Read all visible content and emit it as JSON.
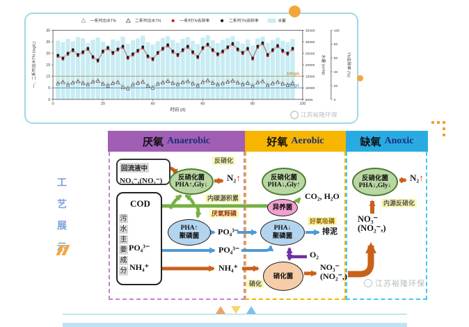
{
  "colors": {
    "accent_orange": "#f4a63a",
    "card_border": "#9fd8e6",
    "arrow_green": "#76b043",
    "arrow_blue": "#4f9ad6",
    "arrow_orange": "#c9611a",
    "arrow_purple": "#7030a0"
  },
  "side_label": {
    "chars": [
      "工",
      "艺",
      "展",
      "示"
    ]
  },
  "chart_data": {
    "type": "scatter",
    "title": "",
    "xlabel": "时间 (d)",
    "ylabel_left": "一、二系列出水TN (mg/L)",
    "ylabel_right1": "水量 (m³/d)",
    "ylabel_right2": "TN去除率 (%)",
    "xlim": [
      0,
      100
    ],
    "ylim_left": [
      0,
      30
    ],
    "ylim_right1": [
      5000,
      35000
    ],
    "ylim_right2": [
      0,
      100
    ],
    "x_ticks": [
      0,
      20,
      40,
      60,
      80,
      100
    ],
    "y_ticks_left": [
      0,
      5,
      10,
      15,
      20,
      25,
      30
    ],
    "y_ticks_right1": [
      5000,
      10000,
      15000,
      20000,
      25000,
      30000,
      35000
    ],
    "y_ticks_right2": [
      0,
      20,
      40,
      60,
      80,
      100
    ],
    "reference_lines": [
      {
        "value": 10,
        "label": "10mg/L",
        "color": "#b06a00"
      },
      {
        "value": 5,
        "label": "5mg/L",
        "color": "#2e75b6"
      }
    ],
    "legend_position": "top",
    "grid": false,
    "watermark": "江苏裕隆环保",
    "x": [
      2,
      4,
      6,
      8,
      10,
      12,
      14,
      16,
      18,
      20,
      22,
      24,
      26,
      28,
      30,
      32,
      34,
      36,
      38,
      40,
      42,
      44,
      46,
      48,
      50,
      52,
      54,
      56,
      58,
      60,
      62,
      64,
      66,
      68,
      70,
      72,
      74,
      76,
      78,
      80,
      82,
      84,
      86,
      88,
      90,
      92,
      94,
      96
    ],
    "series": [
      {
        "name": "一系列出水TN",
        "marker": "triangle-open",
        "color": "#9e9e9e",
        "axis": "left",
        "type": "scatter-line",
        "values": [
          7.2,
          7.8,
          6.9,
          7.5,
          8.1,
          7.4,
          6.8,
          7.9,
          8.3,
          7.1,
          6.5,
          7.3,
          7.8,
          5.9,
          5.2,
          6.8,
          7.4,
          7.9,
          6.2,
          5.5,
          7.1,
          7.6,
          8.2,
          7.4,
          6.9,
          7.7,
          8.1,
          7.2,
          6.4,
          7.8,
          8.4,
          7.5,
          6.8,
          7.2,
          7.9,
          8.3,
          7.6,
          6.9,
          7.4,
          6.2,
          7.7,
          8.1,
          6.5,
          7.3,
          7.8,
          7.1,
          6.6,
          7.4
        ]
      },
      {
        "name": "二系列出水TN",
        "marker": "triangle-open",
        "color": "#4a4a4a",
        "axis": "left",
        "type": "scatter-line",
        "values": [
          6.8,
          7.4,
          6.2,
          7.1,
          7.7,
          6.9,
          6.3,
          7.5,
          7.9,
          6.6,
          5.8,
          6.9,
          7.3,
          5.1,
          4.6,
          6.2,
          7.0,
          7.5,
          5.7,
          4.9,
          6.6,
          7.2,
          7.8,
          6.9,
          6.4,
          7.3,
          7.7,
          6.7,
          5.9,
          7.4,
          8.0,
          7.0,
          6.3,
          6.8,
          7.5,
          7.9,
          7.1,
          6.4,
          7.0,
          5.6,
          7.2,
          7.7,
          6.0,
          6.8,
          7.4,
          6.6,
          6.1,
          6.9
        ]
      },
      {
        "name": "一系列TN去除率",
        "marker": "circle",
        "color": "#cc2222",
        "axis": "right2",
        "type": "scatter-line",
        "values": [
          62,
          58,
          65,
          70,
          63,
          67,
          72,
          60,
          55,
          68,
          73,
          66,
          71,
          75,
          59,
          64,
          69,
          74,
          61,
          57,
          66,
          72,
          77,
          68,
          63,
          70,
          75,
          67,
          60,
          73,
          78,
          70,
          64,
          68,
          74,
          79,
          71,
          66,
          72,
          58,
          75,
          80,
          63,
          70,
          76,
          69,
          65,
          72
        ]
      },
      {
        "name": "二系列TN去除率",
        "marker": "circle",
        "color": "#1a1a1a",
        "axis": "right2",
        "type": "scatter-line",
        "values": [
          64,
          60,
          67,
          72,
          65,
          69,
          74,
          62,
          57,
          70,
          75,
          68,
          73,
          77,
          61,
          66,
          71,
          76,
          63,
          59,
          68,
          74,
          79,
          70,
          65,
          72,
          77,
          69,
          62,
          75,
          80,
          72,
          66,
          70,
          76,
          81,
          73,
          68,
          74,
          60,
          77,
          82,
          65,
          72,
          78,
          71,
          67,
          74
        ]
      },
      {
        "name": "水量",
        "marker": "bar",
        "color": "#c8ecf3",
        "axis": "right1",
        "type": "bar",
        "values": [
          30500,
          29800,
          31200,
          30200,
          32000,
          31500,
          29500,
          30800,
          31800,
          30000,
          28500,
          31000,
          30400,
          32200,
          29200,
          30600,
          31400,
          32600,
          29800,
          28800,
          30200,
          31600,
          32400,
          30800,
          29600,
          31200,
          32000,
          30400,
          29000,
          31800,
          32800,
          30600,
          29400,
          30800,
          31600,
          32400,
          30200,
          29200,
          31000,
          28400,
          31400,
          32200,
          29600,
          30800,
          31800,
          30400,
          29800,
          31200
        ]
      }
    ]
  },
  "diagram": {
    "watermark": "江苏裕隆环保",
    "zones": [
      {
        "id": "anaerobic",
        "title_cn": "厌氧",
        "title_en": "Anaerobic",
        "header_color": "#a05eb5",
        "dash_color": "#c77fd4"
      },
      {
        "id": "aerobic",
        "title_cn": "好氧",
        "title_en": "Aerobic",
        "header_color": "#f7b500",
        "dash_color": "#f0b400"
      },
      {
        "id": "anoxic",
        "title_cn": "缺氧",
        "title_en": "Anoxic",
        "header_color": "#29abe2",
        "dash_color": "#40c8e8"
      }
    ],
    "nodes": {
      "reflux": {
        "line1": "回流液中",
        "line2": "NO₃⁻,(NO₂⁻)"
      },
      "denit_ana": {
        "name": "反硝化菌",
        "state": "PHA↑,Gly↓"
      },
      "denit_aer": {
        "name": "反硝化菌",
        "state": "PHA↓,Gly↑"
      },
      "denit_anx": {
        "name": "反硝化菌",
        "state": "PHA↓,Gly↓"
      },
      "pao_ana": {
        "state": "PHA↑",
        "name": "聚磷菌"
      },
      "pao_aer": {
        "state": "PHA↓",
        "name": "聚磷菌"
      },
      "hetero": {
        "name": "异养菌"
      },
      "nitrifier": {
        "name": "硝化菌"
      },
      "influent": {
        "cod": "COD",
        "po4": "PO₄³⁻",
        "nh4": "NH₄⁺",
        "vertical_chars": [
          "污",
          "水",
          "主",
          "要",
          "成",
          "分"
        ]
      }
    },
    "labels": {
      "denitrification": "反硝化",
      "internal_carbon": "内碳源积累",
      "anaerobic_release": "厌氧释磷",
      "aerobic_uptake": "好氧吸磷",
      "nitrification": "硝化",
      "endogenous": "内源反硝化",
      "sludge": "排泥",
      "co2_h2o": "CO₂, H₂O",
      "o2": "O₂",
      "po4_release": "PO₄³⁻",
      "po4_transfer": "PO₄³⁻",
      "nh4_transfer": "NH₄⁺",
      "no3_mid_1": "NO₃⁻",
      "no3_mid_2": "(NO₂⁻,)",
      "no3_anx_1": "NO₃⁻",
      "no3_anx_2": "(NO₂⁻,)",
      "n2": "N₂",
      "up_arrow": "↑"
    }
  }
}
